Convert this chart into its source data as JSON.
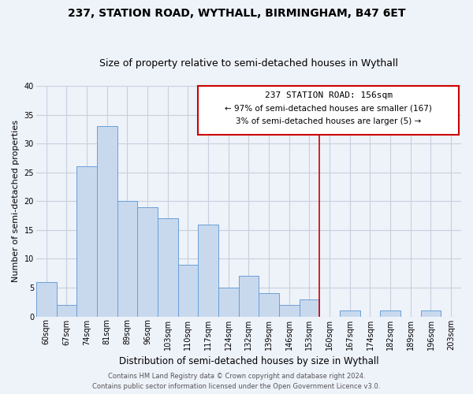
{
  "title": "237, STATION ROAD, WYTHALL, BIRMINGHAM, B47 6ET",
  "subtitle": "Size of property relative to semi-detached houses in Wythall",
  "xlabel": "Distribution of semi-detached houses by size in Wythall",
  "ylabel": "Number of semi-detached properties",
  "bins": [
    "60sqm",
    "67sqm",
    "74sqm",
    "81sqm",
    "89sqm",
    "96sqm",
    "103sqm",
    "110sqm",
    "117sqm",
    "124sqm",
    "132sqm",
    "139sqm",
    "146sqm",
    "153sqm",
    "160sqm",
    "167sqm",
    "174sqm",
    "182sqm",
    "189sqm",
    "196sqm",
    "203sqm"
  ],
  "values": [
    6,
    2,
    26,
    33,
    20,
    19,
    17,
    9,
    16,
    5,
    7,
    4,
    2,
    3,
    0,
    1,
    0,
    1,
    0,
    1,
    0
  ],
  "bar_color": "#c8d9ee",
  "bar_edge_color": "#6a9fd8",
  "vline_x_idx": 14,
  "vline_color": "#cc0000",
  "ylim": [
    0,
    40
  ],
  "yticks": [
    0,
    5,
    10,
    15,
    20,
    25,
    30,
    35,
    40
  ],
  "annotation_title": "237 STATION ROAD: 156sqm",
  "annotation_line1": "← 97% of semi-detached houses are smaller (167)",
  "annotation_line2": "3% of semi-detached houses are larger (5) →",
  "annotation_box_color": "#ffffff",
  "annotation_box_edge": "#cc0000",
  "footer1": "Contains HM Land Registry data © Crown copyright and database right 2024.",
  "footer2": "Contains public sector information licensed under the Open Government Licence v3.0.",
  "background_color": "#eef2f9",
  "grid_color": "#c8d0de",
  "title_fontsize": 10,
  "subtitle_fontsize": 9,
  "xlabel_fontsize": 8.5,
  "ylabel_fontsize": 8,
  "tick_fontsize": 7,
  "footer_fontsize": 6,
  "ann_title_fontsize": 8,
  "ann_line_fontsize": 7.5
}
